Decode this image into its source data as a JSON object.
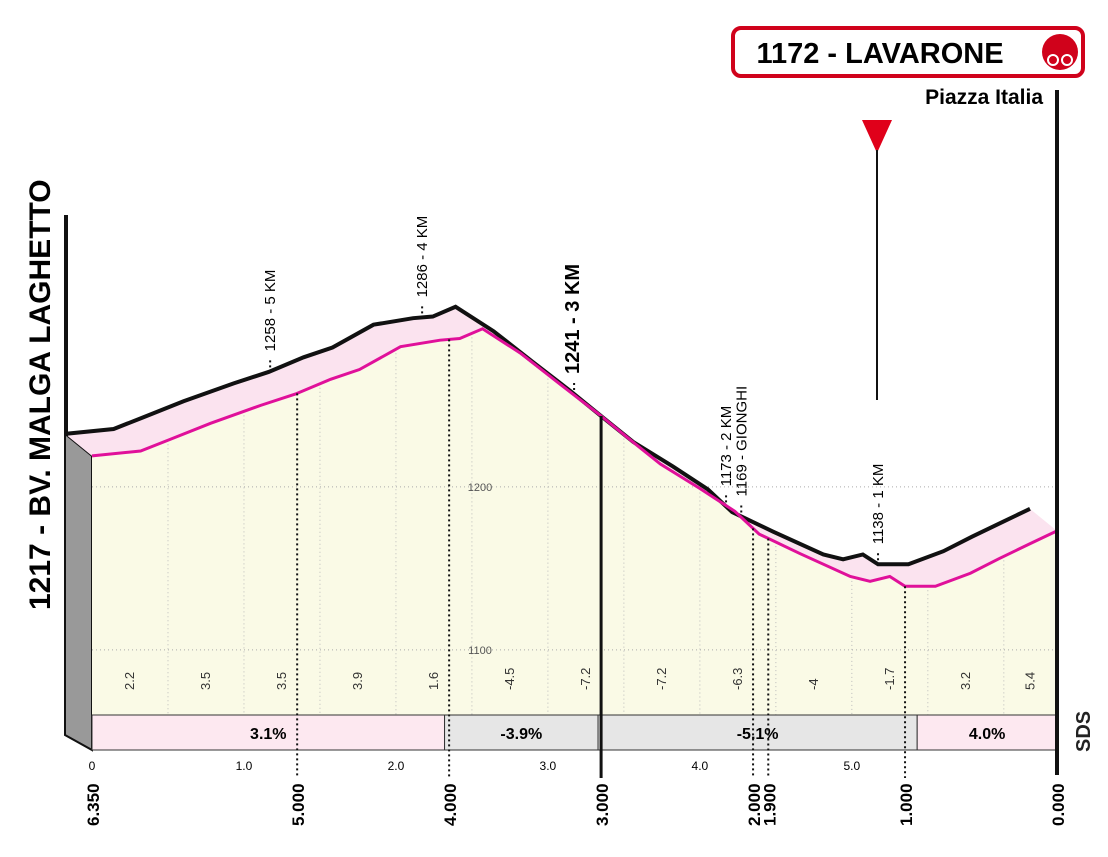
{
  "chart_data": {
    "type": "area",
    "title": "1172 - LAVARONE",
    "subtitle": "Piazza Italia",
    "start_label": "1217 - BV. MALGA LAGHETTO",
    "x": [
      0,
      0.32,
      0.51,
      0.78,
      1.11,
      1.34,
      1.57,
      1.76,
      2.03,
      2.29,
      2.42,
      2.57,
      2.82,
      3.08,
      3.33,
      3.54,
      3.74,
      4.0,
      4.23,
      4.39,
      4.66,
      4.99,
      5.12,
      5.25,
      5.35,
      5.55,
      5.78,
      5.97,
      6.17,
      6.35
    ],
    "values": [
      1219,
      1222,
      1229,
      1239,
      1250,
      1257,
      1266,
      1272,
      1286,
      1290,
      1291,
      1297,
      1282,
      1263,
      1245,
      1229,
      1214,
      1199,
      1185,
      1171,
      1159,
      1145,
      1142,
      1145,
      1139,
      1139,
      1147,
      1156,
      1165,
      1173
    ],
    "line_color": "#e0109a",
    "edge_color": "#111111",
    "face_color": "#fafae6",
    "top_color": "#fbe3ef",
    "xlim": [
      0,
      6.35
    ],
    "xticks": [
      0,
      {
        "value": 1,
        "label": "1.0"
      },
      {
        "value": 2,
        "label": "2.0"
      },
      {
        "value": 3,
        "label": "3.0"
      },
      {
        "value": 4,
        "label": "4.0"
      },
      {
        "value": 5,
        "label": "5.0"
      }
    ],
    "ylim": [
      1060,
      1330
    ],
    "yticks": [
      1100,
      1200
    ],
    "grid": true,
    "gradients": [
      2.2,
      3.5,
      3.5,
      3.9,
      1.6,
      -4.5,
      -7.2,
      -7.2,
      -6.3,
      -4.0,
      -1.7,
      3.2,
      5.4
    ],
    "sectors": [
      {
        "from": 0,
        "to": 2.32,
        "value": 3.1,
        "label": "3.1%",
        "color": "#fde8f0"
      },
      {
        "from": 2.32,
        "to": 3.33,
        "value": -3.9,
        "label": "-3.9%",
        "color": "#e6e6e6"
      },
      {
        "from": 3.33,
        "to": 5.43,
        "value": -5.1,
        "label": "-5.1%",
        "color": "#e6e6e6"
      },
      {
        "from": 5.43,
        "to": 6.35,
        "value": 4.0,
        "label": "4.0%",
        "color": "#fde8f0"
      }
    ],
    "to_go": [
      {
        "value": 6.35,
        "label": "6.350"
      },
      {
        "value": 5,
        "label": "5.000"
      },
      {
        "value": 4,
        "label": "4.000"
      },
      {
        "value": 3,
        "label": "3.000"
      },
      {
        "value": 2,
        "label": "2.000"
      },
      {
        "value": 1.9,
        "label": "1.900"
      },
      {
        "value": 1,
        "label": "1.000"
      },
      {
        "value": 0,
        "label": "0.000"
      }
    ],
    "waypoints": [
      {
        "label": "1258 - 5 KM",
        "to_go": 5
      },
      {
        "label": "1286 - 4 KM",
        "to_go": 4
      },
      {
        "label": "1241 - 3 KM",
        "to_go": 3
      },
      {
        "label": "1173 - 2 KM",
        "to_go": 2
      },
      {
        "label": "1169 - GIONGHI",
        "to_go": 1.9
      },
      {
        "label": "1138 - 1 KM",
        "to_go": 1
      }
    ],
    "logo": "SDS"
  }
}
